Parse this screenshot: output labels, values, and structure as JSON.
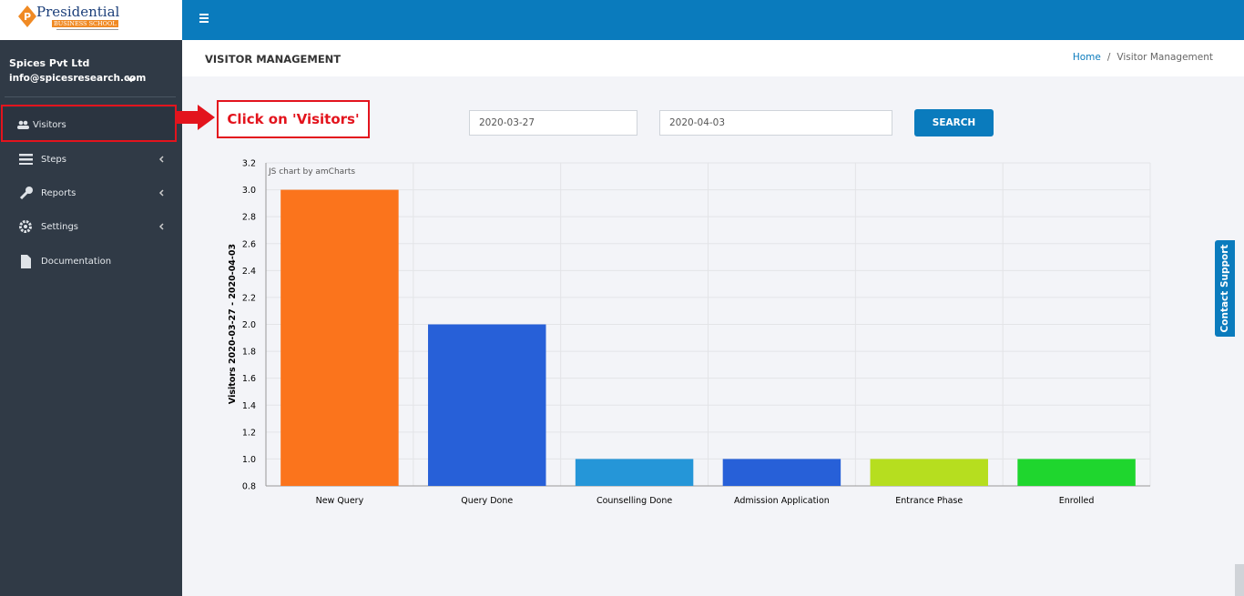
{
  "logo": {
    "title": "Presidential",
    "subtitle": "BUSINESS SCHOOL"
  },
  "user": {
    "company": "Spices Pvt Ltd",
    "email": "info@spicesresearch.com"
  },
  "nav": [
    {
      "label": "Visitors"
    },
    {
      "label": "Steps"
    },
    {
      "label": "Reports"
    },
    {
      "label": "Settings"
    },
    {
      "label": "Documentation"
    }
  ],
  "annotation": "Click on 'Visitors'",
  "page_title": "VISITOR MANAGEMENT",
  "breadcrumb": [
    "Home",
    "Visitor Management"
  ],
  "filters": {
    "start_date": "2020-03-27",
    "end_date": "2020-04-03",
    "button": "SEARCH"
  },
  "contact_support": "Contact Support",
  "chart_data": {
    "type": "bar",
    "y_label": "Visitors 2020-03-27 - 2020-04-03",
    "credit": "JS chart by amCharts",
    "categories": [
      "New Query",
      "Query Done",
      "Counselling Done",
      "Admission Application",
      "Entrance Phase",
      "Enrolled"
    ],
    "values": [
      3,
      2,
      1,
      1,
      1,
      1
    ],
    "colors": [
      "#fb741c",
      "#2760d8",
      "#2596d8",
      "#2760d8",
      "#b6de1f",
      "#1fd62e"
    ],
    "ylim": [
      0.8,
      3.2
    ],
    "yticks": [
      0.8,
      {
        "value": 1,
        "label": "1.0"
      },
      1.2,
      1.4,
      1.6,
      1.8,
      {
        "value": 2,
        "label": "2.0"
      },
      2.2,
      2.4,
      2.6,
      2.8,
      {
        "value": 3,
        "label": "3.0"
      },
      3.2
    ],
    "grid": true
  }
}
